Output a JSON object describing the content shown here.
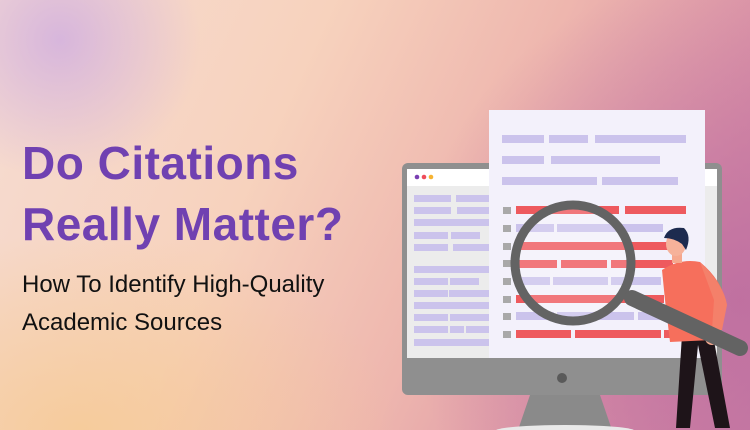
{
  "banner": {
    "title_lines": [
      "Do Citations",
      "Really Matter?"
    ],
    "subtitle_lines": [
      "How To Identify High-Quality",
      "Academic Sources"
    ]
  },
  "colors": {
    "title": "#7041b1",
    "subtitle": "#111111",
    "placeholder_lines": "#cbc3ec",
    "highlight_lines": "#ee5a5e",
    "monitor": "#8c8c8c",
    "magnifier": "#636363",
    "person_shirt": "#f66f5c",
    "person_hair": "#1d2b4f"
  },
  "illustration": {
    "icons": [
      "monitor-icon",
      "document-icon",
      "magnifying-glass-icon",
      "person-icon"
    ],
    "window_dots": [
      "#7a3fb3",
      "#ef4d5b",
      "#f6b332"
    ]
  }
}
